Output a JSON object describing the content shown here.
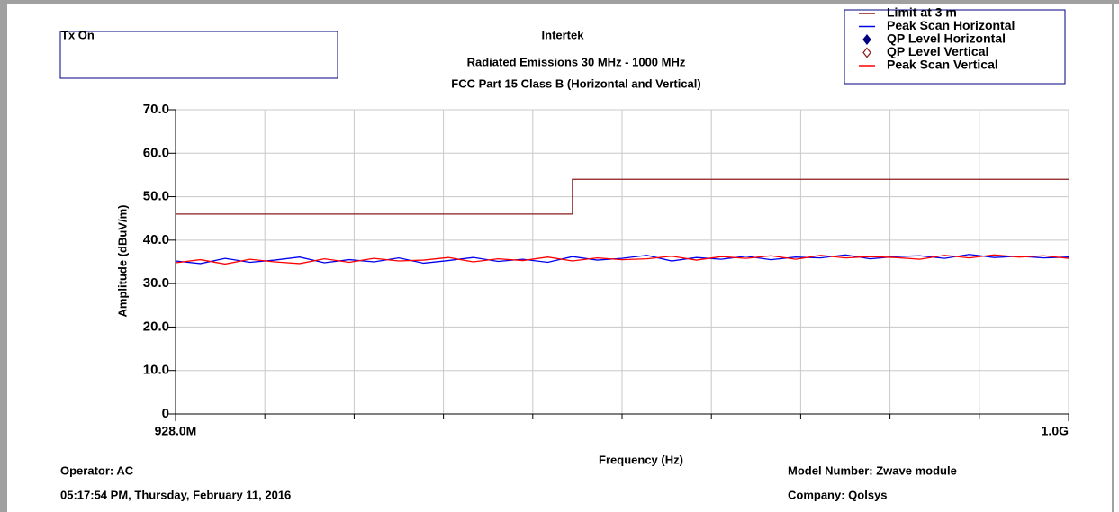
{
  "chart_data": {
    "type": "line",
    "header_box": "Tx On",
    "title": "Intertek",
    "subtitle": [
      "Radiated Emissions 30 MHz - 1000 MHz",
      "FCC Part 15 Class B (Horizontal and Vertical)"
    ],
    "x_label": "Frequency (Hz)",
    "y_label": "Amplitude (dBuV/m)",
    "xlim": [
      928000000,
      1000000000
    ],
    "xticks": [
      {
        "value": 928000000,
        "label": "928.0M"
      },
      {
        "value": 1000000000,
        "label": "1.0G"
      }
    ],
    "xgrid": [
      935200000,
      942400000,
      949600000,
      956800000,
      964000000,
      971200000,
      978400000,
      985600000,
      992800000
    ],
    "ylim": [
      0,
      70
    ],
    "yticks": [
      0,
      {
        "value": 10,
        "label": "10.0"
      },
      {
        "value": 20,
        "label": "20.0"
      },
      {
        "value": 30,
        "label": "30.0"
      },
      {
        "value": 40,
        "label": "40.0"
      },
      {
        "value": 50,
        "label": "50.0"
      },
      {
        "value": 60,
        "label": "60.0"
      },
      {
        "value": 70,
        "label": "70.0"
      }
    ],
    "grid": true,
    "series": [
      {
        "name": "Limit at 3 m",
        "color": "#8b1a1a",
        "marker": "line",
        "x": [
          928000000,
          960000000,
          960000000,
          1000000000
        ],
        "values": [
          46,
          46,
          54,
          54
        ]
      },
      {
        "name": "Peak Scan Horizontal",
        "color": "#0000ee",
        "marker": "line",
        "x": [
          928000000,
          930000000,
          932000000,
          934000000,
          936000000,
          938000000,
          940000000,
          942000000,
          944000000,
          946000000,
          948000000,
          950000000,
          952000000,
          954000000,
          956000000,
          958000000,
          960000000,
          962000000,
          964000000,
          966000000,
          968000000,
          970000000,
          972000000,
          974000000,
          976000000,
          978000000,
          980000000,
          982000000,
          984000000,
          986000000,
          988000000,
          990000000,
          992000000,
          994000000,
          996000000,
          998000000,
          1000000000
        ],
        "values": [
          35.2,
          34.6,
          35.8,
          34.9,
          35.4,
          36.1,
          34.8,
          35.5,
          35.0,
          35.9,
          34.7,
          35.3,
          36.0,
          35.1,
          35.6,
          34.9,
          36.2,
          35.4,
          35.8,
          36.5,
          35.2,
          36.0,
          35.6,
          36.3,
          35.5,
          36.1,
          35.9,
          36.6,
          35.7,
          36.2,
          36.4,
          35.8,
          36.7,
          36.0,
          36.3,
          35.9,
          36.1
        ]
      },
      {
        "name": "QP Level Horizontal",
        "color": "#000080",
        "marker": "filled-diamond"
      },
      {
        "name": "QP Level Vertical",
        "color": "#8b1a1a",
        "marker": "open-diamond"
      },
      {
        "name": "Peak Scan Vertical",
        "color": "#ff0000",
        "marker": "line",
        "x": [
          928000000,
          930000000,
          932000000,
          934000000,
          936000000,
          938000000,
          940000000,
          942000000,
          944000000,
          946000000,
          948000000,
          950000000,
          952000000,
          954000000,
          956000000,
          958000000,
          960000000,
          962000000,
          964000000,
          966000000,
          968000000,
          970000000,
          972000000,
          974000000,
          976000000,
          978000000,
          980000000,
          982000000,
          984000000,
          986000000,
          988000000,
          990000000,
          992000000,
          994000000,
          996000000,
          998000000,
          1000000000
        ],
        "values": [
          34.8,
          35.5,
          34.5,
          35.6,
          35.0,
          34.6,
          35.7,
          34.9,
          35.8,
          35.2,
          35.4,
          36.0,
          35.0,
          35.7,
          35.3,
          36.1,
          35.2,
          35.9,
          35.5,
          35.7,
          36.3,
          35.4,
          36.2,
          35.8,
          36.4,
          35.6,
          36.5,
          35.9,
          36.2,
          36.0,
          35.6,
          36.5,
          35.9,
          36.6,
          36.1,
          36.4,
          35.8
        ]
      }
    ],
    "footer": {
      "operator": "Operator: AC",
      "timestamp": "05:17:54 PM, Thursday, February 11, 2016",
      "model": "Model Number: Zwave module",
      "company": "Company: Qolsys"
    }
  }
}
